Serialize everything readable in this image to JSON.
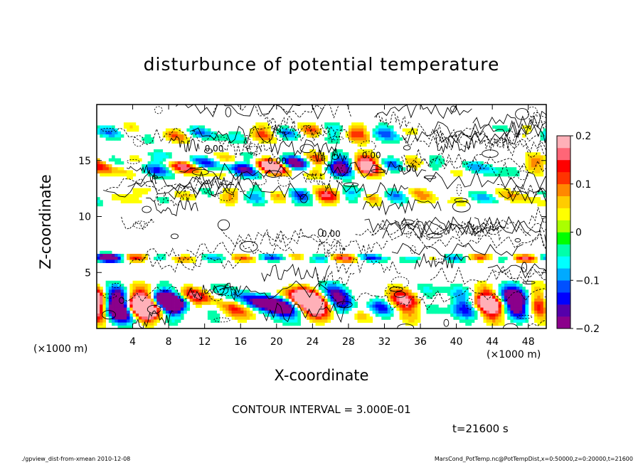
{
  "chart_data": {
    "type": "heatmap",
    "title": "disturbunce of potential temperature",
    "xlabel": "X-coordinate",
    "ylabel": "Z-coordinate",
    "x_unit_left": "(×1000 m)",
    "x_unit_right": "(×1000 m)",
    "xlim": [
      0,
      50
    ],
    "ylim": [
      0,
      20
    ],
    "x_ticks": [
      4,
      8,
      12,
      16,
      20,
      24,
      28,
      32,
      36,
      40,
      44,
      48
    ],
    "y_ticks": [
      5,
      10,
      15
    ],
    "colorbar": {
      "range": [
        -0.2,
        0.2
      ],
      "ticks": [
        {
          "value": 0.2,
          "label": "0.2"
        },
        {
          "value": 0.1,
          "label": "0.1"
        },
        {
          "value": 0,
          "label": "0"
        },
        {
          "value": -0.1,
          "label": "−0.1"
        },
        {
          "value": -0.2,
          "label": "−0.2"
        }
      ],
      "colors": [
        "#8b008b",
        "#5500aa",
        "#0000ff",
        "#0050ff",
        "#00aaff",
        "#00ffff",
        "#00ffaa",
        "#00ff00",
        "#aaff00",
        "#ffff00",
        "#ffcc00",
        "#ff8800",
        "#ff3300",
        "#ff0000",
        "#ff6677",
        "#ffb0b8"
      ]
    },
    "contour_interval": "CONTOUR INTERVAL = 3.000E-01",
    "contour_labels": [
      {
        "text": "0.00",
        "x": 12,
        "z": 15.8
      },
      {
        "text": "0.00",
        "x": 19,
        "z": 14.7
      },
      {
        "text": "0.00",
        "x": 29.5,
        "z": 15.2
      },
      {
        "text": "0.00",
        "x": 33.5,
        "z": 14.0
      },
      {
        "text": "0.00",
        "x": 25,
        "z": 8.2
      }
    ]
  },
  "time_label": "t=21600 s",
  "footer": {
    "left": "./gpview_dist-from-xmean   2010-12-08",
    "right": "MarsCond_PotTemp.nc@PotTempDist,x=0:50000,z=0:20000,t=21600"
  }
}
